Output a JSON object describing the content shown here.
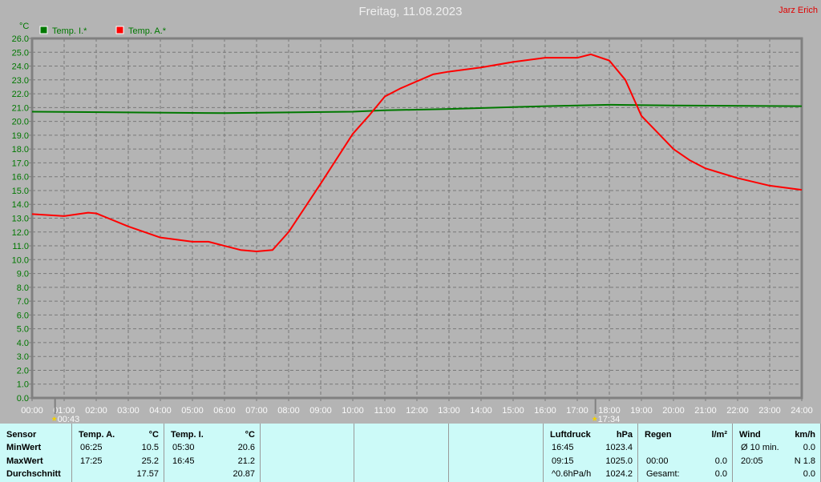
{
  "header": {
    "title": "Freitag, 11.08.2023",
    "author": "Jarz Erich"
  },
  "chart_data": {
    "type": "line",
    "title": "Freitag, 11.08.2023",
    "ylabel": "°C",
    "ylim": [
      0,
      26
    ],
    "xlim": [
      "00:00",
      "24:00"
    ],
    "grid": true,
    "legend": "top-left",
    "yticks": [
      "0.0",
      "1.0",
      "2.0",
      "3.0",
      "4.0",
      "5.0",
      "6.0",
      "7.0",
      "8.0",
      "9.0",
      "10.0",
      "11.0",
      "12.0",
      "13.0",
      "14.0",
      "15.0",
      "16.0",
      "17.0",
      "18.0",
      "19.0",
      "20.0",
      "21.0",
      "22.0",
      "23.0",
      "24.0",
      "25.0",
      "26.0"
    ],
    "xticks": [
      "00:00",
      "01:00",
      "02:00",
      "03:00",
      "04:00",
      "05:00",
      "06:00",
      "07:00",
      "08:00",
      "09:00",
      "10:00",
      "11:00",
      "12:00",
      "13:00",
      "14:00",
      "15:00",
      "16:00",
      "17:00",
      "18:00",
      "19:00",
      "20:00",
      "21:00",
      "22:00",
      "23:00",
      "24:00"
    ],
    "markers": [
      {
        "time": "00:43",
        "label": "00:43"
      },
      {
        "time": "17:34",
        "label": "17:34"
      }
    ],
    "series": [
      {
        "name": "Temp. I.*",
        "color": "#007800",
        "x": [
          0,
          6,
          10,
          11,
          13,
          16,
          18,
          20,
          24
        ],
        "values": [
          20.7,
          20.6,
          20.7,
          20.8,
          20.9,
          21.1,
          21.2,
          21.15,
          21.1
        ]
      },
      {
        "name": "Temp. A.*",
        "color": "#ff0000",
        "x": [
          0,
          1,
          1.75,
          2,
          3,
          4,
          5,
          5.5,
          6,
          6.5,
          7,
          7.5,
          8,
          9,
          10,
          10.5,
          11,
          11.5,
          12,
          12.5,
          13,
          14,
          15,
          16,
          17,
          17.42,
          18,
          18.5,
          19,
          19.5,
          20,
          20.5,
          21,
          22,
          23,
          24
        ],
        "values": [
          13.3,
          13.15,
          13.4,
          13.35,
          12.4,
          11.6,
          11.3,
          11.3,
          11.0,
          10.7,
          10.6,
          10.7,
          12.0,
          15.5,
          19.1,
          20.4,
          21.8,
          22.4,
          22.9,
          23.4,
          23.6,
          23.9,
          24.3,
          24.6,
          24.6,
          24.85,
          24.4,
          23.0,
          20.4,
          19.2,
          18.0,
          17.2,
          16.6,
          15.9,
          15.35,
          15.05
        ]
      }
    ]
  },
  "table": {
    "cols": [
      {
        "head": "Sensor",
        "unit": "",
        "rows": [
          [
            "MinWert",
            ""
          ],
          [
            "MaxWert",
            ""
          ],
          [
            "Durchschnitt",
            ""
          ]
        ]
      },
      {
        "head": "Temp. A.",
        "unit": "°C",
        "rows": [
          [
            "06:25",
            "10.5"
          ],
          [
            "17:25",
            "25.2"
          ],
          [
            "",
            "17.57"
          ]
        ]
      },
      {
        "head": "Temp. I.",
        "unit": "°C",
        "rows": [
          [
            "05:30",
            "20.6"
          ],
          [
            "16:45",
            "21.2"
          ],
          [
            "",
            "20.87"
          ]
        ]
      },
      {
        "head": "",
        "unit": "",
        "rows": []
      },
      {
        "head": "",
        "unit": "",
        "rows": []
      },
      {
        "head": "",
        "unit": "",
        "rows": []
      },
      {
        "head": "Luftdruck",
        "unit": "hPa",
        "rows": [
          [
            "16:45",
            "1023.4"
          ],
          [
            "09:15",
            "1025.0"
          ],
          [
            "^0.6hPa/h",
            "1024.2"
          ]
        ]
      },
      {
        "head": "Regen",
        "unit": "l/m²",
        "rows": [
          [
            "",
            ""
          ],
          [
            "00:00",
            "0.0"
          ],
          [
            "Gesamt:",
            "0.0"
          ]
        ]
      },
      {
        "head": "Wind",
        "unit": "km/h",
        "rows": [
          [
            "Ø 10 min.",
            "0.0"
          ],
          [
            "20:05",
            "N 1.8"
          ],
          [
            "",
            "0.0"
          ]
        ]
      }
    ]
  }
}
